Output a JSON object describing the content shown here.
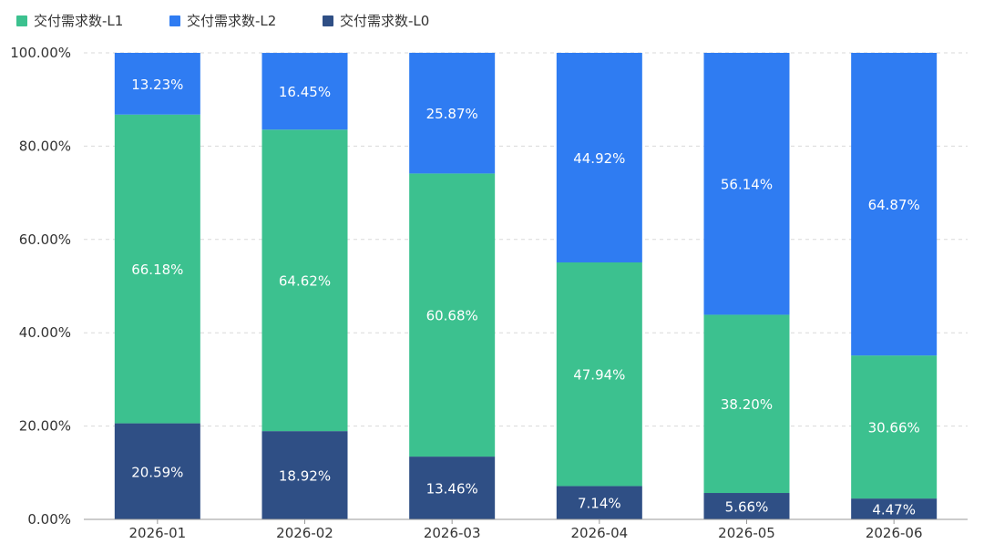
{
  "chart_data": {
    "type": "bar",
    "stacked": true,
    "normalized": true,
    "categories": [
      "2026-01",
      "2026-02",
      "2026-03",
      "2026-04",
      "2026-05",
      "2026-06"
    ],
    "series": [
      {
        "name": "交付需求数-L0",
        "color": "#2f4f85",
        "values": [
          20.59,
          18.92,
          13.46,
          7.14,
          5.66,
          4.47
        ],
        "labels": [
          "20.59%",
          "18.92%",
          "13.46%",
          "7.14%",
          "5.66%",
          "4.47%"
        ]
      },
      {
        "name": "交付需求数-L1",
        "color": "#3cc18f",
        "values": [
          66.18,
          64.62,
          60.68,
          47.94,
          38.2,
          30.66
        ],
        "labels": [
          "66.18%",
          "64.62%",
          "60.68%",
          "47.94%",
          "38.20%",
          "30.66%"
        ]
      },
      {
        "name": "交付需求数-L2",
        "color": "#2f7cf2",
        "values": [
          13.23,
          16.45,
          25.87,
          44.92,
          56.14,
          64.87
        ],
        "labels": [
          "13.23%",
          "16.45%",
          "25.87%",
          "44.92%",
          "56.14%",
          "64.87%"
        ]
      }
    ],
    "legend": {
      "placement": "top-left",
      "order": [
        "交付需求数-L1",
        "交付需求数-L2",
        "交付需求数-L0"
      ]
    },
    "yaxis": {
      "ticks": [
        0,
        20,
        40,
        60,
        80,
        100
      ],
      "tick_labels": [
        "0.00%",
        "20.00%",
        "40.00%",
        "60.00%",
        "80.00%",
        "100.00%"
      ],
      "ylim": [
        0,
        100
      ]
    },
    "grid": true,
    "title": "",
    "xlabel": "",
    "ylabel": ""
  }
}
